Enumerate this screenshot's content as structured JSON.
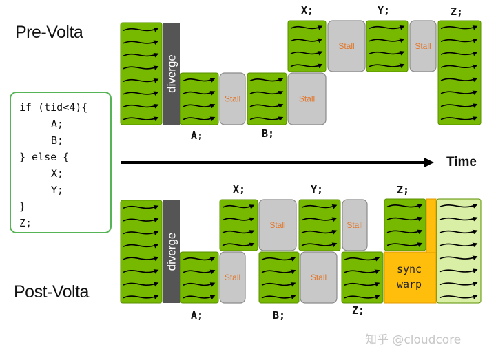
{
  "titles": {
    "pre": "Pre-Volta",
    "post": "Post-Volta"
  },
  "code_lines": [
    "if (tid<4){",
    "A;",
    "B;",
    "} else {",
    "X;",
    "Y;",
    "}",
    "Z;"
  ],
  "time_label": "Time",
  "block_labels": {
    "diverge": "diverge",
    "stall": "Stall",
    "sync_line1": "sync",
    "sync_line2": "warp"
  },
  "pre_labels": {
    "A": "A;",
    "B": "B;",
    "X": "X;",
    "Y": "Y;",
    "Z": "Z;"
  },
  "post_labels": {
    "X": "X;",
    "Y": "Y;",
    "Z_top": "Z;",
    "A": "A;",
    "B": "B;",
    "Z_bottom": "Z;"
  },
  "watermark": "知乎 @cloudcore",
  "colors": {
    "green": "#76b900",
    "green_dark": "#5a8f00",
    "light_green": "#d9efa6",
    "stall": "#c8c8c8",
    "stall_text": "#e2772b",
    "diverge": "#555555",
    "sync": "#ffbe0b",
    "sync_border": "#e29a00",
    "code_border": "#56b356"
  }
}
